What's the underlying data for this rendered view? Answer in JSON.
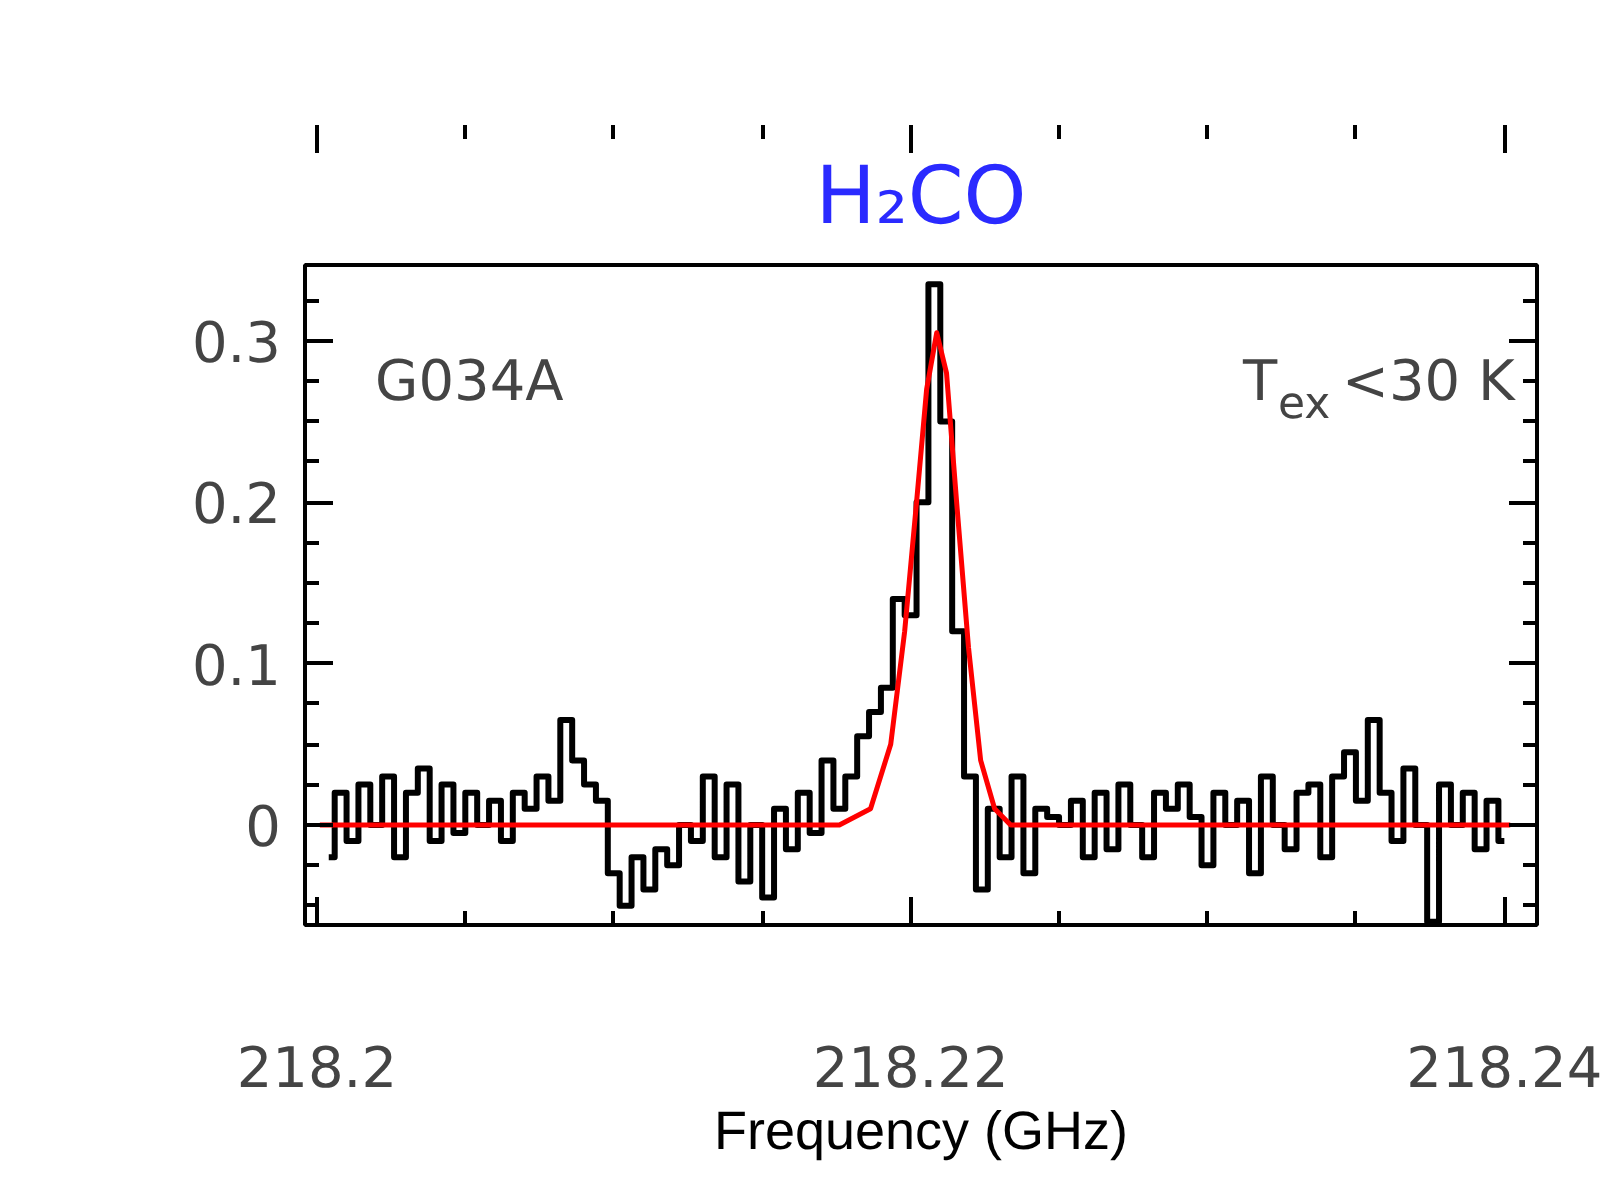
{
  "chart_data": {
    "type": "step",
    "title": "H₂CO",
    "xlabel": "Frequency (GHz)",
    "annotations": [
      "G034A",
      "T$_{ex}$<30 K"
    ],
    "xlim": [
      218.1996,
      218.2411
    ],
    "ylim": [
      -0.062,
      0.347
    ],
    "xticks": [
      218.2,
      218.22,
      218.24
    ],
    "yticks": [
      0,
      0.1,
      0.2,
      0.3
    ],
    "grid": false,
    "line_style": "solid",
    "marker": "none",
    "series": [
      {
        "color": "#000000",
        "x": [
          218.2004,
          218.2008,
          218.2012,
          218.2016,
          218.202,
          218.2024,
          218.2028,
          218.2032,
          218.2036,
          218.204,
          218.2044,
          218.2048,
          218.2052,
          218.2056,
          218.206,
          218.2064,
          218.2068,
          218.2072,
          218.2076,
          218.208,
          218.2084,
          218.2088,
          218.2092,
          218.2096,
          218.21,
          218.2104,
          218.2108,
          218.2112,
          218.2116,
          218.212,
          218.2124,
          218.2128,
          218.2132,
          218.2136,
          218.214,
          218.2144,
          218.2148,
          218.2152,
          218.2156,
          218.216,
          218.2164,
          218.2168,
          218.2172,
          218.2176,
          218.218,
          218.2184,
          218.2188,
          218.2192,
          218.2196,
          218.22,
          218.2204,
          218.2208,
          218.2212,
          218.2216,
          218.222,
          218.2224,
          218.2228,
          218.2232,
          218.2236,
          218.224,
          218.2244,
          218.2248,
          218.2252,
          218.2256,
          218.226,
          218.2264,
          218.2268,
          218.2272,
          218.2276,
          218.228,
          218.2284,
          218.2288,
          218.2292,
          218.2296,
          218.23,
          218.2304,
          218.2308,
          218.2312,
          218.2316,
          218.232,
          218.2324,
          218.2328,
          218.2332,
          218.2336,
          218.234,
          218.2344,
          218.2348,
          218.2352,
          218.2356,
          218.236,
          218.2364,
          218.2368,
          218.2372,
          218.2376,
          218.238,
          218.2384,
          218.2388,
          218.2392,
          218.2396,
          218.24
        ],
        "values": [
          -0.02,
          0.02,
          -0.01,
          0.025,
          0.0,
          0.03,
          -0.02,
          0.02,
          0.035,
          -0.01,
          0.025,
          -0.005,
          0.02,
          0.0,
          0.015,
          -0.01,
          0.02,
          0.01,
          0.03,
          0.015,
          0.065,
          0.04,
          0.025,
          0.015,
          -0.03,
          -0.05,
          -0.02,
          -0.04,
          -0.015,
          -0.025,
          0.0,
          -0.01,
          0.03,
          -0.02,
          0.025,
          -0.035,
          0.0,
          -0.045,
          0.01,
          -0.015,
          0.02,
          -0.005,
          0.04,
          0.01,
          0.03,
          0.055,
          0.07,
          0.085,
          0.14,
          0.13,
          0.2,
          0.335,
          0.25,
          0.12,
          0.03,
          -0.04,
          0.01,
          -0.02,
          0.03,
          -0.03,
          0.01,
          0.005,
          0.0,
          0.015,
          -0.02,
          0.02,
          -0.015,
          0.025,
          0.0,
          -0.02,
          0.02,
          0.01,
          0.025,
          0.005,
          -0.025,
          0.02,
          0.0,
          0.015,
          -0.03,
          0.03,
          0.0,
          -0.015,
          0.02,
          0.025,
          -0.02,
          0.03,
          0.045,
          0.015,
          0.065,
          0.02,
          -0.01,
          0.035,
          0.0,
          -0.06,
          0.025,
          0.0,
          0.02,
          -0.015,
          0.015,
          -0.01
        ]
      },
      {
        "type": "line",
        "color": "#ff0000",
        "x": [
          218.2001,
          218.2176,
          218.21865,
          218.21933,
          218.2198,
          218.2202,
          218.22054,
          218.22088,
          218.22121,
          218.22155,
          218.22195,
          218.22236,
          218.22283,
          218.22337,
          218.2402
        ],
        "values": [
          0,
          0,
          0.01,
          0.05,
          0.12,
          0.2,
          0.27,
          0.305,
          0.28,
          0.2,
          0.11,
          0.04,
          0.01,
          0,
          0
        ]
      }
    ]
  }
}
